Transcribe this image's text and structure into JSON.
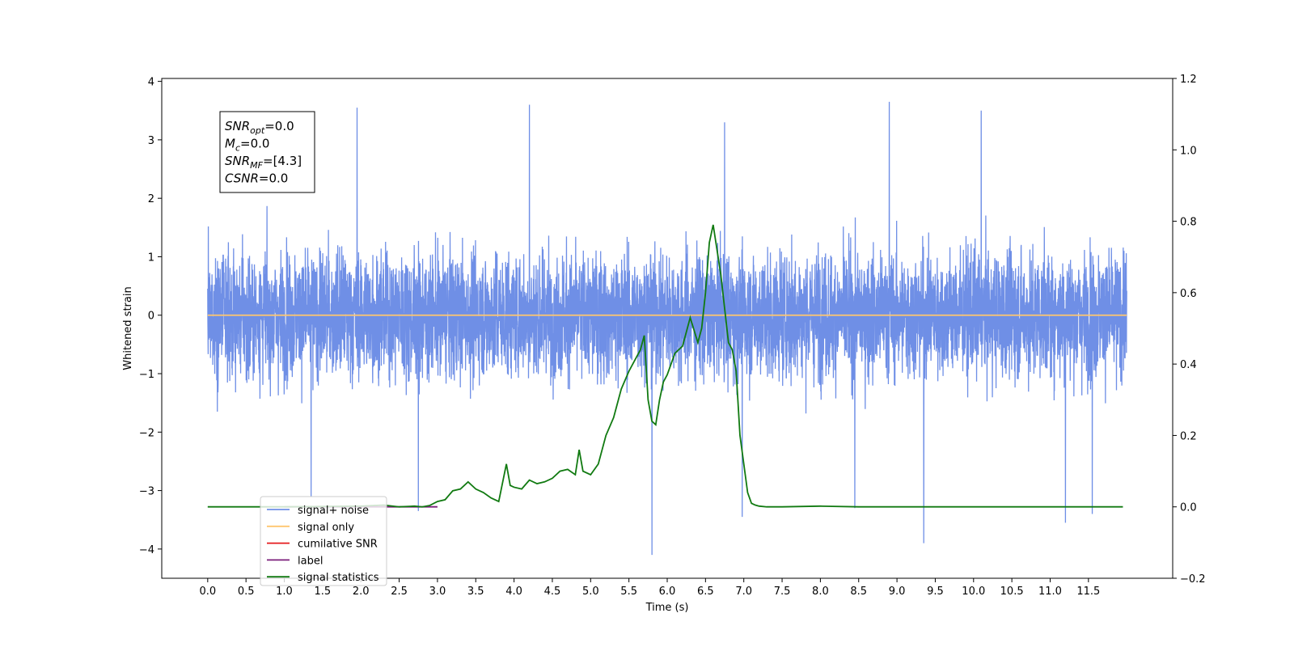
{
  "chart_data": {
    "type": "line",
    "xlabel": "Time (s)",
    "ylabel": "Whitened strain",
    "xlim": [
      -0.6,
      12.6
    ],
    "ylim": [
      -4.5,
      4.05
    ],
    "y2lim": [
      -0.2,
      1.2
    ],
    "x_ticks": [
      "0.0",
      "0.5",
      "1.0",
      "1.5",
      "2.0",
      "2.5",
      "3.0",
      "3.5",
      "4.0",
      "4.5",
      "5.0",
      "5.5",
      "6.0",
      "6.5",
      "7.0",
      "7.5",
      "8.0",
      "8.5",
      "9.0",
      "9.5",
      "10.0",
      "10.5",
      "11.0",
      "11.5"
    ],
    "y_ticks": [
      "−4",
      "−3",
      "−2",
      "−1",
      "0",
      "1",
      "2",
      "3",
      "4"
    ],
    "y2_ticks": [
      "−0.2",
      "0.0",
      "0.2",
      "0.4",
      "0.6",
      "0.8",
      "1.0",
      "1.2"
    ],
    "stats_box": {
      "lines": [
        {
          "sym": "SNR",
          "sub": "opt",
          "value": "=0.0"
        },
        {
          "sym": "M",
          "sub": "c",
          "value": "=0.0"
        },
        {
          "sym": "SNR",
          "sub": "MF",
          "value": "=[4.3]"
        },
        {
          "sym": "CSNR",
          "sub": "",
          "value": "=0.0"
        }
      ]
    },
    "legend": {
      "placement": "lower-left",
      "entries": [
        {
          "label": "signal+ noise",
          "color": "#6f8fe6"
        },
        {
          "label": "signal only",
          "color": "#ffc66e"
        },
        {
          "label": "cumilative SNR",
          "color": "#e41a1c"
        },
        {
          "label": "label",
          "color": "#7b1f7b"
        },
        {
          "label": "signal statistics",
          "color": "#117a11"
        }
      ]
    },
    "series": [
      {
        "name": "signal+ noise",
        "color": "#6f8fe6",
        "axis": "left",
        "kind": "noise",
        "x_range": [
          0.0,
          12.0
        ],
        "typical_range": [
          -2.0,
          2.3
        ],
        "spikes": [
          {
            "x": 1.95,
            "y": 3.55
          },
          {
            "x": 4.2,
            "y": 3.6
          },
          {
            "x": 6.75,
            "y": 3.3
          },
          {
            "x": 8.9,
            "y": 3.65
          },
          {
            "x": 10.1,
            "y": 3.5
          },
          {
            "x": 5.8,
            "y": -4.1
          },
          {
            "x": 9.35,
            "y": -3.9
          },
          {
            "x": 11.2,
            "y": -3.55
          },
          {
            "x": 11.55,
            "y": -3.4
          },
          {
            "x": 6.98,
            "y": -3.45
          },
          {
            "x": 2.75,
            "y": -3.35
          },
          {
            "x": 1.35,
            "y": -3.1
          },
          {
            "x": 8.45,
            "y": -3.3
          }
        ]
      },
      {
        "name": "signal only",
        "color": "#ffc66e",
        "axis": "left",
        "x": [
          0.0,
          12.0
        ],
        "y": [
          0.0,
          0.0
        ]
      },
      {
        "name": "label",
        "color": "#7b1f7b",
        "axis": "right",
        "x": [
          1.0,
          3.0
        ],
        "y": [
          0.0,
          0.0
        ]
      },
      {
        "name": "signal statistics",
        "color": "#117a11",
        "axis": "right",
        "x": [
          0.0,
          1.0,
          2.0,
          2.3,
          2.5,
          2.7,
          2.8,
          2.9,
          3.0,
          3.1,
          3.2,
          3.3,
          3.4,
          3.5,
          3.6,
          3.7,
          3.8,
          3.9,
          3.95,
          4.0,
          4.1,
          4.2,
          4.3,
          4.4,
          4.5,
          4.6,
          4.7,
          4.8,
          4.85,
          4.9,
          5.0,
          5.1,
          5.2,
          5.3,
          5.4,
          5.5,
          5.6,
          5.65,
          5.7,
          5.75,
          5.8,
          5.85,
          5.9,
          5.95,
          6.0,
          6.05,
          6.1,
          6.2,
          6.3,
          6.4,
          6.45,
          6.5,
          6.55,
          6.6,
          6.7,
          6.8,
          6.85,
          6.9,
          6.95,
          7.0,
          7.05,
          7.1,
          7.15,
          7.2,
          7.3,
          7.5,
          8.0,
          8.5,
          9.0,
          10.0,
          11.0,
          11.95
        ],
        "y": [
          0.0,
          0.0,
          0.002,
          0.005,
          0.0,
          0.002,
          0.0,
          0.004,
          0.015,
          0.02,
          0.045,
          0.05,
          0.07,
          0.05,
          0.04,
          0.025,
          0.015,
          0.12,
          0.06,
          0.055,
          0.05,
          0.075,
          0.065,
          0.07,
          0.08,
          0.1,
          0.105,
          0.09,
          0.16,
          0.1,
          0.09,
          0.12,
          0.2,
          0.25,
          0.33,
          0.38,
          0.42,
          0.44,
          0.48,
          0.3,
          0.24,
          0.23,
          0.3,
          0.35,
          0.37,
          0.4,
          0.43,
          0.45,
          0.53,
          0.46,
          0.5,
          0.6,
          0.74,
          0.79,
          0.65,
          0.46,
          0.44,
          0.38,
          0.2,
          0.12,
          0.04,
          0.01,
          0.005,
          0.002,
          0.0,
          0.0,
          0.002,
          0.0,
          0.0,
          0.0,
          0.0,
          0.0
        ]
      }
    ]
  }
}
